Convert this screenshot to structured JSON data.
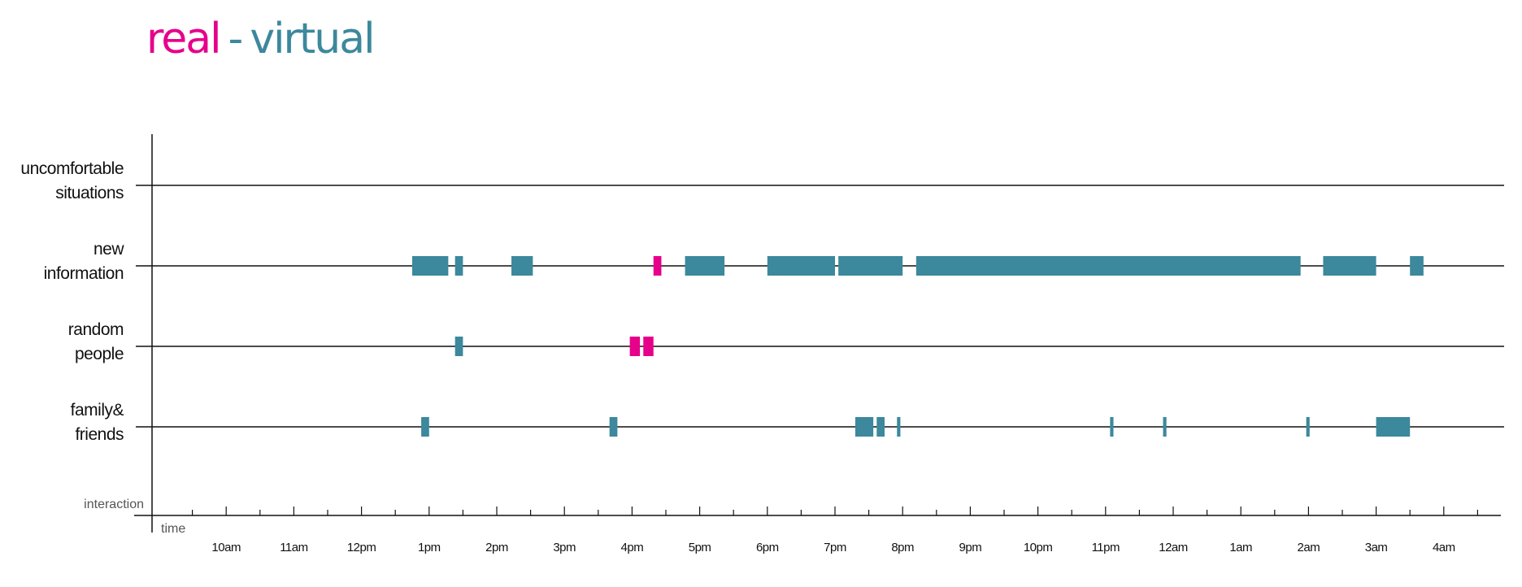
{
  "title": {
    "real": "real",
    "separator": "-",
    "virtual": "virtual"
  },
  "colors": {
    "real": "#e6008a",
    "virtual": "#3c889c",
    "axis": "#111111"
  },
  "chart_data": {
    "type": "timeline",
    "x_axis_label": "time",
    "y_axis_label": "interaction",
    "x_start_hour": 9,
    "x_end_hour": 29,
    "tick_labels": [
      "10am",
      "11am",
      "12pm",
      "1pm",
      "2pm",
      "3pm",
      "4pm",
      "5pm",
      "6pm",
      "7pm",
      "8pm",
      "9pm",
      "10pm",
      "11pm",
      "12am",
      "1am",
      "2am",
      "3am",
      "4am"
    ],
    "categories": [
      {
        "id": "uncomfortable",
        "label_lines": [
          "uncomfortable",
          "situations"
        ]
      },
      {
        "id": "new_info",
        "label_lines": [
          "new",
          "information"
        ]
      },
      {
        "id": "random",
        "label_lines": [
          "random",
          "people"
        ]
      },
      {
        "id": "family",
        "label_lines": [
          "family&",
          "friends"
        ]
      }
    ],
    "legend": [
      {
        "name": "real",
        "color": "#e6008a"
      },
      {
        "name": "virtual",
        "color": "#3c889c"
      }
    ],
    "events": [
      {
        "category": "new_info",
        "kind": "virtual",
        "start": "12:45pm",
        "end": "1:17pm"
      },
      {
        "category": "new_info",
        "kind": "virtual",
        "start": "1:23pm",
        "end": "1:30pm"
      },
      {
        "category": "new_info",
        "kind": "virtual",
        "start": "2:13pm",
        "end": "2:32pm"
      },
      {
        "category": "new_info",
        "kind": "real",
        "start": "4:19pm",
        "end": "4:26pm"
      },
      {
        "category": "new_info",
        "kind": "virtual",
        "start": "4:47pm",
        "end": "5:22pm"
      },
      {
        "category": "new_info",
        "kind": "virtual",
        "start": "6:00pm",
        "end": "7:00pm"
      },
      {
        "category": "new_info",
        "kind": "virtual",
        "start": "7:03pm",
        "end": "8:00pm"
      },
      {
        "category": "new_info",
        "kind": "virtual",
        "start": "8:12pm",
        "end": "1:53am"
      },
      {
        "category": "new_info",
        "kind": "virtual",
        "start": "2:13am",
        "end": "3:00am"
      },
      {
        "category": "new_info",
        "kind": "virtual",
        "start": "3:30am",
        "end": "3:42am"
      },
      {
        "category": "random",
        "kind": "virtual",
        "start": "1:23pm",
        "end": "1:30pm"
      },
      {
        "category": "random",
        "kind": "real",
        "start": "3:58pm",
        "end": "4:07pm"
      },
      {
        "category": "random",
        "kind": "real",
        "start": "4:10pm",
        "end": "4:19pm"
      },
      {
        "category": "family",
        "kind": "virtual",
        "start": "12:53pm",
        "end": "1:00pm"
      },
      {
        "category": "family",
        "kind": "virtual",
        "start": "3:40pm",
        "end": "3:47pm"
      },
      {
        "category": "family",
        "kind": "virtual",
        "start": "7:18pm",
        "end": "7:34pm"
      },
      {
        "category": "family",
        "kind": "virtual",
        "start": "7:37pm",
        "end": "7:44pm"
      },
      {
        "category": "family",
        "kind": "virtual",
        "start": "7:55pm",
        "end": "7:58pm"
      },
      {
        "category": "family",
        "kind": "virtual",
        "start": "11:04pm",
        "end": "11:07pm"
      },
      {
        "category": "family",
        "kind": "virtual",
        "start": "11:51pm",
        "end": "11:54pm"
      },
      {
        "category": "family",
        "kind": "virtual",
        "start": "1:58am",
        "end": "2:01am"
      },
      {
        "category": "family",
        "kind": "virtual",
        "start": "3:00am",
        "end": "3:30am"
      }
    ]
  }
}
